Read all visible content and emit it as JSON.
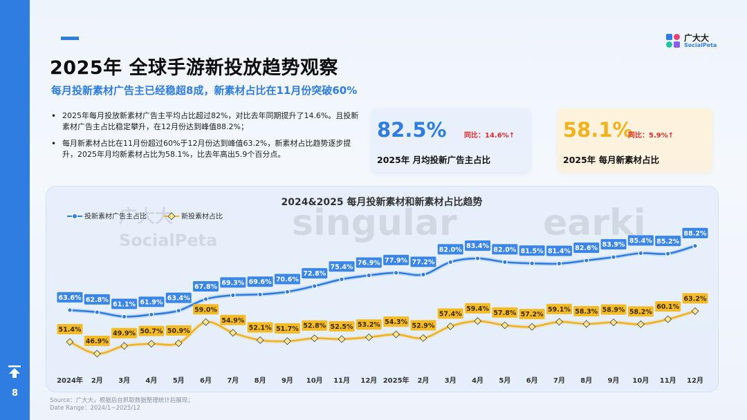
{
  "header": {
    "title": "2025年 全球手游新投放趋势观察",
    "subtitle": "每月投新素材广告主已经稳超8成，新素材占比在11月份突破60%"
  },
  "logo": {
    "name_cn": "广大大",
    "name_en": "SocialPeta"
  },
  "page_number": "8",
  "bullets": [
    "2025年每月投放新素材广告主平均占比超过82%，对比去年同期提升了14.6%。且投新素材广告主占比稳定攀升，在12月份达到峰值88.2%；",
    "每月新素材占比在11月份超过60%于12月份达到峰值63.2%，新素材占比趋势逐步提升，2025年月均新素材占比为58.1%，比去年高出5.9个百分点。"
  ],
  "kpis": [
    {
      "value": "82.5%",
      "yoy": "同比：14.6%↑",
      "label": "2025年 月均投新广告主占比",
      "color": "#2f7de1"
    },
    {
      "value": "58.1%",
      "yoy": "同比：5.9%↑",
      "label": "2025年 每月新素材占比",
      "color": "#f2b21e"
    }
  ],
  "watermarks": {
    "socialpeta_cn": "广大大",
    "socialpeta_en": "SocialPeta",
    "singular": "singular",
    "earki": "earki"
  },
  "chart_data": {
    "type": "line",
    "title": "2024&2025 每月投新素材和新素材占比趋势",
    "categories": [
      "2024年",
      "2月",
      "3月",
      "4月",
      "5月",
      "6月",
      "7月",
      "8月",
      "9月",
      "10月",
      "11月",
      "12月",
      "2025年",
      "2月",
      "3月",
      "4月",
      "5月",
      "6月",
      "7月",
      "8月",
      "9月",
      "10月",
      "11月",
      "12月"
    ],
    "series": [
      {
        "name": "投新素材广告主占比",
        "color": "#2f7de1",
        "values": [
          63.6,
          62.8,
          61.1,
          61.9,
          63.4,
          67.8,
          69.3,
          69.6,
          70.6,
          72.8,
          75.4,
          76.9,
          77.9,
          77.2,
          82.0,
          83.4,
          82.0,
          81.5,
          81.4,
          82.6,
          83.9,
          85.4,
          85.2,
          88.2
        ],
        "labels": [
          "63.6%",
          "62.8%",
          "61.1%",
          "61.9%",
          "63.4%",
          "67.8%",
          "69.3%",
          "69.6%",
          "70.6%",
          "72.8%",
          "75.4%",
          "76.9%",
          "77.9%",
          "77.2%",
          "82.0%",
          "83.4%",
          "82.0%",
          "81.5%",
          "81.4%",
          "82.6%",
          "83.9%",
          "85.4%",
          "85.2%",
          "88.2%"
        ]
      },
      {
        "name": "新投素材占比",
        "color": "#f2b21e",
        "values": [
          51.4,
          46.9,
          49.9,
          50.7,
          50.9,
          59.0,
          54.9,
          52.1,
          51.7,
          52.8,
          52.5,
          53.2,
          54.3,
          52.9,
          57.4,
          59.4,
          57.8,
          57.2,
          59.1,
          58.3,
          58.9,
          58.2,
          60.1,
          63.2
        ],
        "labels": [
          "51.4%",
          "46.9%",
          "49.9%",
          "50.7%",
          "50.9%",
          "59.0%",
          "54.9%",
          "52.1%",
          "51.7%",
          "52.8%",
          "52.5%",
          "53.2%",
          "54.3%",
          "52.9%",
          "57.4%",
          "59.4%",
          "57.8%",
          "57.2%",
          "59.1%",
          "58.3%",
          "58.9%",
          "58.2%",
          "60.1%",
          "63.2%"
        ]
      }
    ],
    "legend": "top-left",
    "grid": false
  },
  "source": {
    "line1": "Source：广大大，根据后台抓取数据整理统计后展现；",
    "line2": "Date Range：2024/1~2025/12"
  }
}
